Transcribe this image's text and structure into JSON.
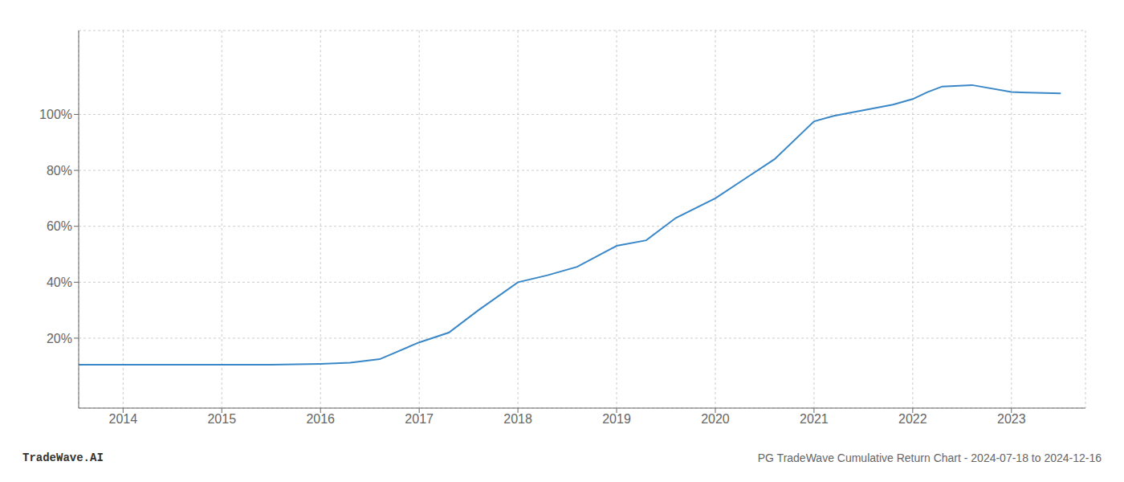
{
  "chart_data": {
    "type": "line",
    "title": "PG TradeWave Cumulative Return Chart - 2024-07-18 to 2024-12-16",
    "annotations": [
      "TradeWave.AI"
    ],
    "x": [
      2013.55,
      2014.0,
      2014.5,
      2015.0,
      2015.5,
      2016.0,
      2016.3,
      2016.6,
      2017.0,
      2017.3,
      2017.6,
      2018.0,
      2018.3,
      2018.6,
      2019.0,
      2019.3,
      2019.6,
      2020.0,
      2020.3,
      2020.6,
      2021.0,
      2021.2,
      2021.5,
      2021.8,
      2022.0,
      2022.15,
      2022.3,
      2022.6,
      2023.0,
      2023.5
    ],
    "values": [
      10.5,
      10.5,
      10.5,
      10.5,
      10.5,
      10.8,
      11.2,
      12.5,
      18.5,
      22.0,
      30.0,
      40.0,
      42.5,
      45.5,
      53.0,
      55.0,
      63.0,
      70.0,
      77.0,
      84.0,
      97.5,
      99.5,
      101.5,
      103.5,
      105.5,
      108.0,
      110.0,
      110.5,
      108.0,
      107.5
    ],
    "color": "#3a87c8",
    "xlim": [
      2013.55,
      2023.75
    ],
    "ylim": [
      -5,
      130
    ],
    "xticks": [
      2014,
      2015,
      2016,
      2017,
      2018,
      2019,
      2020,
      2021,
      2022,
      2023
    ],
    "yticks": [
      {
        "value": 20,
        "label": "20%"
      },
      {
        "value": 40,
        "label": "40%"
      },
      {
        "value": 60,
        "label": "60%"
      },
      {
        "value": 80,
        "label": "80%"
      },
      {
        "value": 100,
        "label": "100%"
      }
    ],
    "grid": true
  }
}
